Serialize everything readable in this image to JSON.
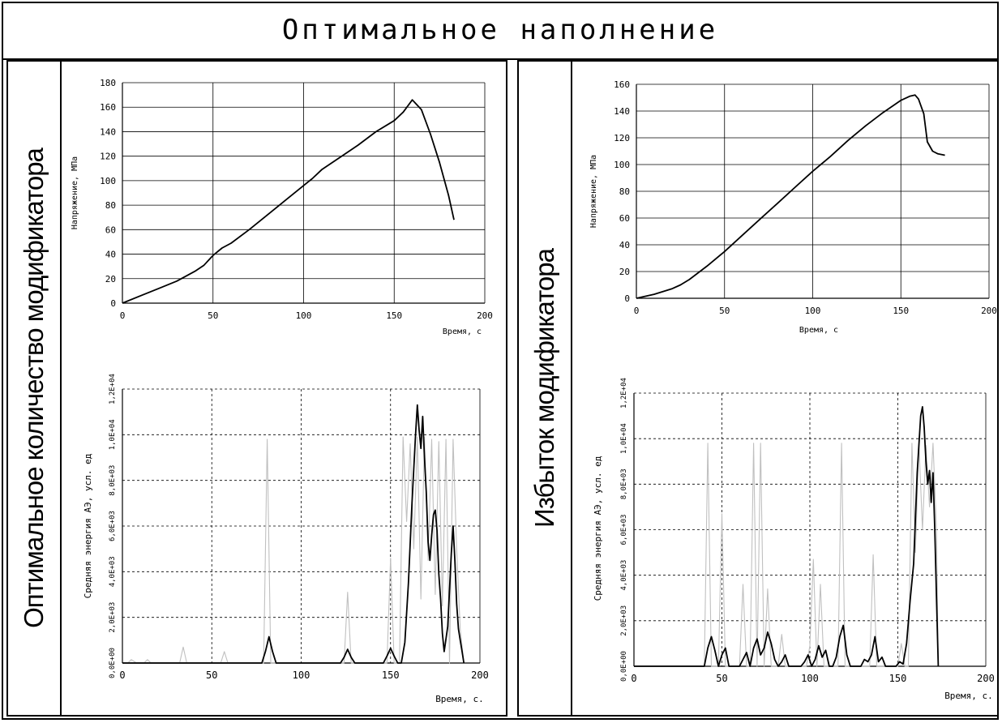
{
  "page": {
    "title": "Оптимальное наполнение"
  },
  "panels": [
    {
      "side_label": "Оптимальное количество модификатора"
    },
    {
      "side_label": "Избыток модификатора"
    }
  ],
  "chart_data": [
    {
      "id": "left-stress",
      "type": "line",
      "xlabel": "Время, с",
      "ylabel": "Напряжение, МПа",
      "xlim": [
        0,
        200
      ],
      "ylim": [
        0,
        180
      ],
      "x_ticks": [
        "0",
        "50",
        "100",
        "150",
        "200"
      ],
      "y_ticks": [
        "0",
        "20",
        "40",
        "60",
        "80",
        "100",
        "120",
        "140",
        "160",
        "180"
      ],
      "grid": "solid",
      "series": [
        {
          "x": [
            0,
            10,
            20,
            30,
            40,
            45,
            50,
            55,
            60,
            70,
            80,
            90,
            100,
            105,
            110,
            120,
            130,
            140,
            150,
            155,
            160,
            165,
            170,
            175,
            180,
            183
          ],
          "y": [
            0,
            6,
            12,
            18,
            26,
            31,
            39,
            45,
            49,
            60,
            72,
            84,
            96,
            102,
            109,
            119,
            129,
            140,
            149,
            156,
            166,
            158,
            138,
            115,
            88,
            68
          ],
          "color": "#000000"
        }
      ]
    },
    {
      "id": "left-ae",
      "type": "line",
      "xlabel": "Время, с.",
      "ylabel": "Средняя энергия АЭ, усл. ед",
      "xlim": [
        0,
        200
      ],
      "ylim": [
        0,
        12000
      ],
      "x_ticks": [
        "0",
        "50",
        "100",
        "150",
        "200"
      ],
      "y_ticks": [
        "0,0E+00",
        "2,0E+03",
        "4,0E+03",
        "6,0E+03",
        "8,0E+03",
        "1,0E+04",
        "1,2E+04"
      ],
      "grid": "dashed",
      "series": [
        {
          "x": [
            0,
            3,
            5,
            8,
            12,
            14,
            16,
            32,
            34,
            36,
            55,
            57,
            59,
            79,
            81,
            83,
            124,
            126,
            128,
            148,
            150,
            152,
            155,
            157,
            159,
            161,
            163,
            165,
            167,
            169,
            171,
            173,
            175,
            177,
            179,
            181,
            183,
            185,
            187,
            189,
            191
          ],
          "y": [
            0,
            0,
            150,
            0,
            0,
            150,
            0,
            0,
            700,
            0,
            0,
            500,
            0,
            0,
            9800,
            0,
            0,
            3100,
            0,
            0,
            4600,
            0,
            0,
            9900,
            6200,
            9600,
            5000,
            9900,
            2800,
            9900,
            4500,
            9800,
            3000,
            9700,
            2500,
            9800,
            0,
            9800,
            5000,
            1500,
            0
          ],
          "color": "#c0c0c0"
        },
        {
          "x": [
            0,
            78,
            80,
            82,
            84,
            86,
            122,
            124,
            126,
            128,
            130,
            146,
            148,
            150,
            152,
            154,
            156,
            158,
            160,
            162,
            164,
            165,
            166,
            167,
            168,
            169,
            170,
            171,
            172,
            173,
            174,
            175,
            176,
            177,
            178,
            179,
            180,
            182,
            184,
            185,
            186,
            187,
            188,
            189,
            190,
            191
          ],
          "y": [
            0,
            0,
            500,
            1150,
            500,
            0,
            0,
            250,
            600,
            250,
            0,
            0,
            300,
            650,
            300,
            0,
            0,
            900,
            3500,
            7000,
            10000,
            11300,
            10200,
            9400,
            10800,
            9000,
            7500,
            5300,
            4500,
            5600,
            6500,
            6700,
            5800,
            3900,
            2800,
            1300,
            500,
            1600,
            4800,
            6000,
            4500,
            2600,
            1500,
            1000,
            500,
            0
          ],
          "color": "#000000"
        }
      ]
    },
    {
      "id": "right-stress",
      "type": "line",
      "xlabel": "Время, с",
      "ylabel": "Напряжение, МПа",
      "xlim": [
        0,
        200
      ],
      "ylim": [
        0,
        160
      ],
      "x_ticks": [
        "0",
        "50",
        "100",
        "150",
        "200"
      ],
      "y_ticks": [
        "0",
        "20",
        "40",
        "60",
        "80",
        "100",
        "120",
        "140",
        "160"
      ],
      "grid": "solid",
      "series": [
        {
          "x": [
            0,
            10,
            20,
            25,
            30,
            40,
            50,
            60,
            70,
            80,
            90,
            100,
            110,
            120,
            130,
            140,
            150,
            155,
            158,
            160,
            163,
            165,
            168,
            171,
            175
          ],
          "y": [
            0,
            3,
            7,
            10,
            14,
            24,
            35,
            47,
            59,
            71,
            83,
            95,
            106,
            118,
            129,
            139,
            148,
            151,
            152,
            149,
            138,
            117,
            110,
            108,
            107
          ],
          "color": "#000000"
        }
      ]
    },
    {
      "id": "right-ae",
      "type": "line",
      "xlabel": "Время, с.",
      "ylabel": "Средняя энергия АЭ, усл. ед",
      "xlim": [
        0,
        200
      ],
      "ylim": [
        0,
        12000
      ],
      "x_ticks": [
        "0",
        "50",
        "100",
        "150",
        "200"
      ],
      "y_ticks": [
        "0,0E+00",
        "2,0E+03",
        "4,0E+03",
        "6,0E+03",
        "8,0E+03",
        "1,0E+04",
        "1,2E+04"
      ],
      "grid": "dashed",
      "series": [
        {
          "x": [
            0,
            40,
            42,
            44,
            48,
            50,
            52,
            60,
            62,
            64,
            66,
            68,
            70,
            72,
            74,
            76,
            78,
            82,
            84,
            86,
            98,
            100,
            102,
            104,
            106,
            108,
            110,
            116,
            118,
            120,
            134,
            136,
            138,
            150,
            152,
            154,
            156,
            158,
            160,
            162,
            164,
            166,
            168,
            170,
            172,
            173
          ],
          "y": [
            0,
            0,
            9800,
            0,
            0,
            6700,
            0,
            0,
            3600,
            0,
            0,
            9800,
            0,
            9800,
            0,
            3400,
            0,
            0,
            1400,
            0,
            0,
            900,
            4700,
            0,
            3600,
            0,
            0,
            0,
            9800,
            0,
            0,
            4900,
            0,
            0,
            1000,
            0,
            0,
            9800,
            5000,
            9800,
            6000,
            9700,
            7000,
            9800,
            6000,
            0
          ],
          "color": "#c0c0c0"
        },
        {
          "x": [
            0,
            40,
            42,
            44,
            46,
            48,
            50,
            52,
            54,
            60,
            62,
            64,
            66,
            68,
            70,
            72,
            74,
            76,
            78,
            80,
            82,
            84,
            86,
            88,
            95,
            97,
            99,
            101,
            103,
            105,
            107,
            109,
            111,
            113,
            115,
            117,
            119,
            121,
            123,
            129,
            131,
            133,
            135,
            137,
            139,
            141,
            143,
            149,
            151,
            153,
            155,
            157,
            159,
            161,
            163,
            164,
            165,
            166,
            167,
            168,
            169,
            170,
            171,
            172,
            173
          ],
          "y": [
            0,
            0,
            800,
            1300,
            700,
            0,
            500,
            800,
            0,
            0,
            300,
            600,
            0,
            800,
            1200,
            500,
            800,
            1500,
            1000,
            300,
            0,
            200,
            500,
            0,
            0,
            200,
            500,
            0,
            300,
            900,
            400,
            700,
            0,
            0,
            400,
            1300,
            1800,
            500,
            0,
            0,
            300,
            200,
            500,
            1300,
            200,
            400,
            0,
            0,
            200,
            100,
            1000,
            2900,
            4500,
            8500,
            11000,
            11400,
            10500,
            9000,
            8000,
            8600,
            7200,
            8500,
            6000,
            3000,
            0
          ],
          "color": "#000000"
        }
      ]
    }
  ]
}
